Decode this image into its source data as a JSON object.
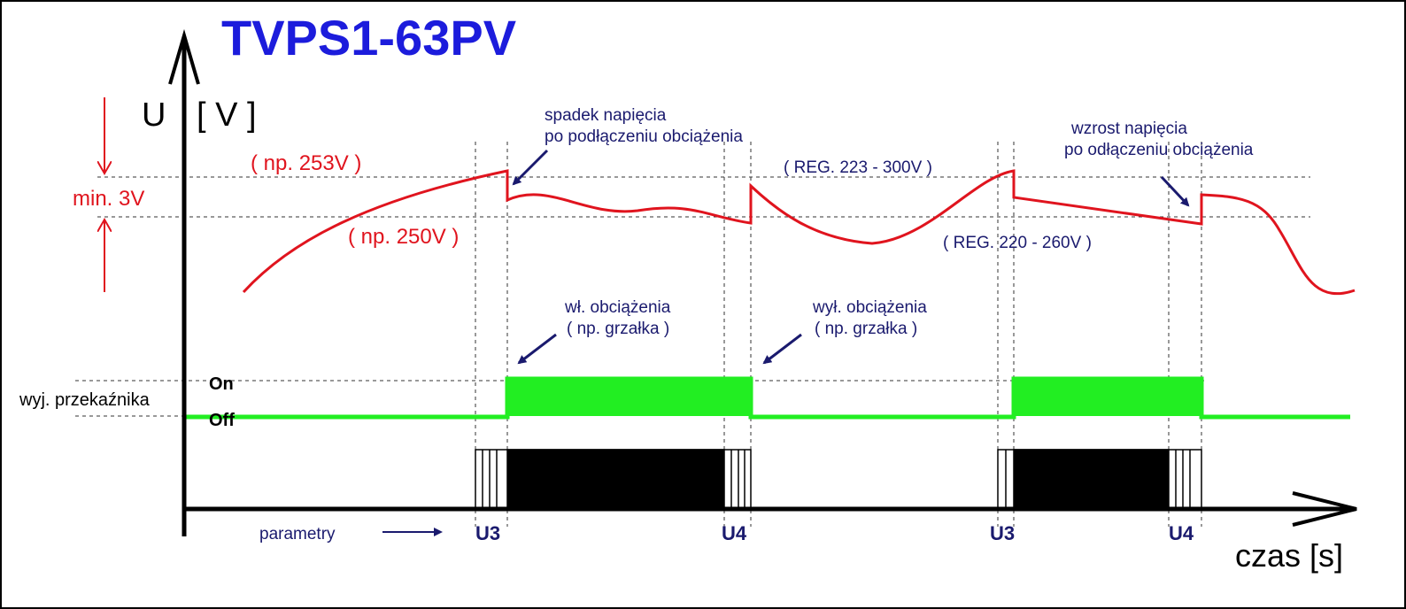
{
  "title": "TVPS1-63PV",
  "axes": {
    "y_label": "U",
    "y_unit": "[ V ]",
    "x_label": "czas [s]"
  },
  "voltage": {
    "upper": "( np. 253V )",
    "hysteresis": "min. 3V",
    "lower": "( np. 250V )",
    "upper_range": "( REG. 223 - 300V )",
    "lower_range": "( REG. 220 - 260V )"
  },
  "annotations": [
    {
      "lines": [
        "spadek napięcia",
        "po podłączeniu obciążenia"
      ]
    },
    {
      "lines": [
        "wzrost napięcia",
        "po odłączeniu obciążenia"
      ]
    },
    {
      "lines": [
        "wł. obciążenia",
        "( np. grzałka )"
      ]
    },
    {
      "lines": [
        "wył. obciążenia",
        "( np. grzałka )"
      ]
    }
  ],
  "relay": {
    "label": "wyj. przekaźnika",
    "on": "On",
    "off": "Off"
  },
  "parameters": {
    "label": "parametry",
    "markers": [
      "U3",
      "U4",
      "U3",
      "U4"
    ]
  }
}
